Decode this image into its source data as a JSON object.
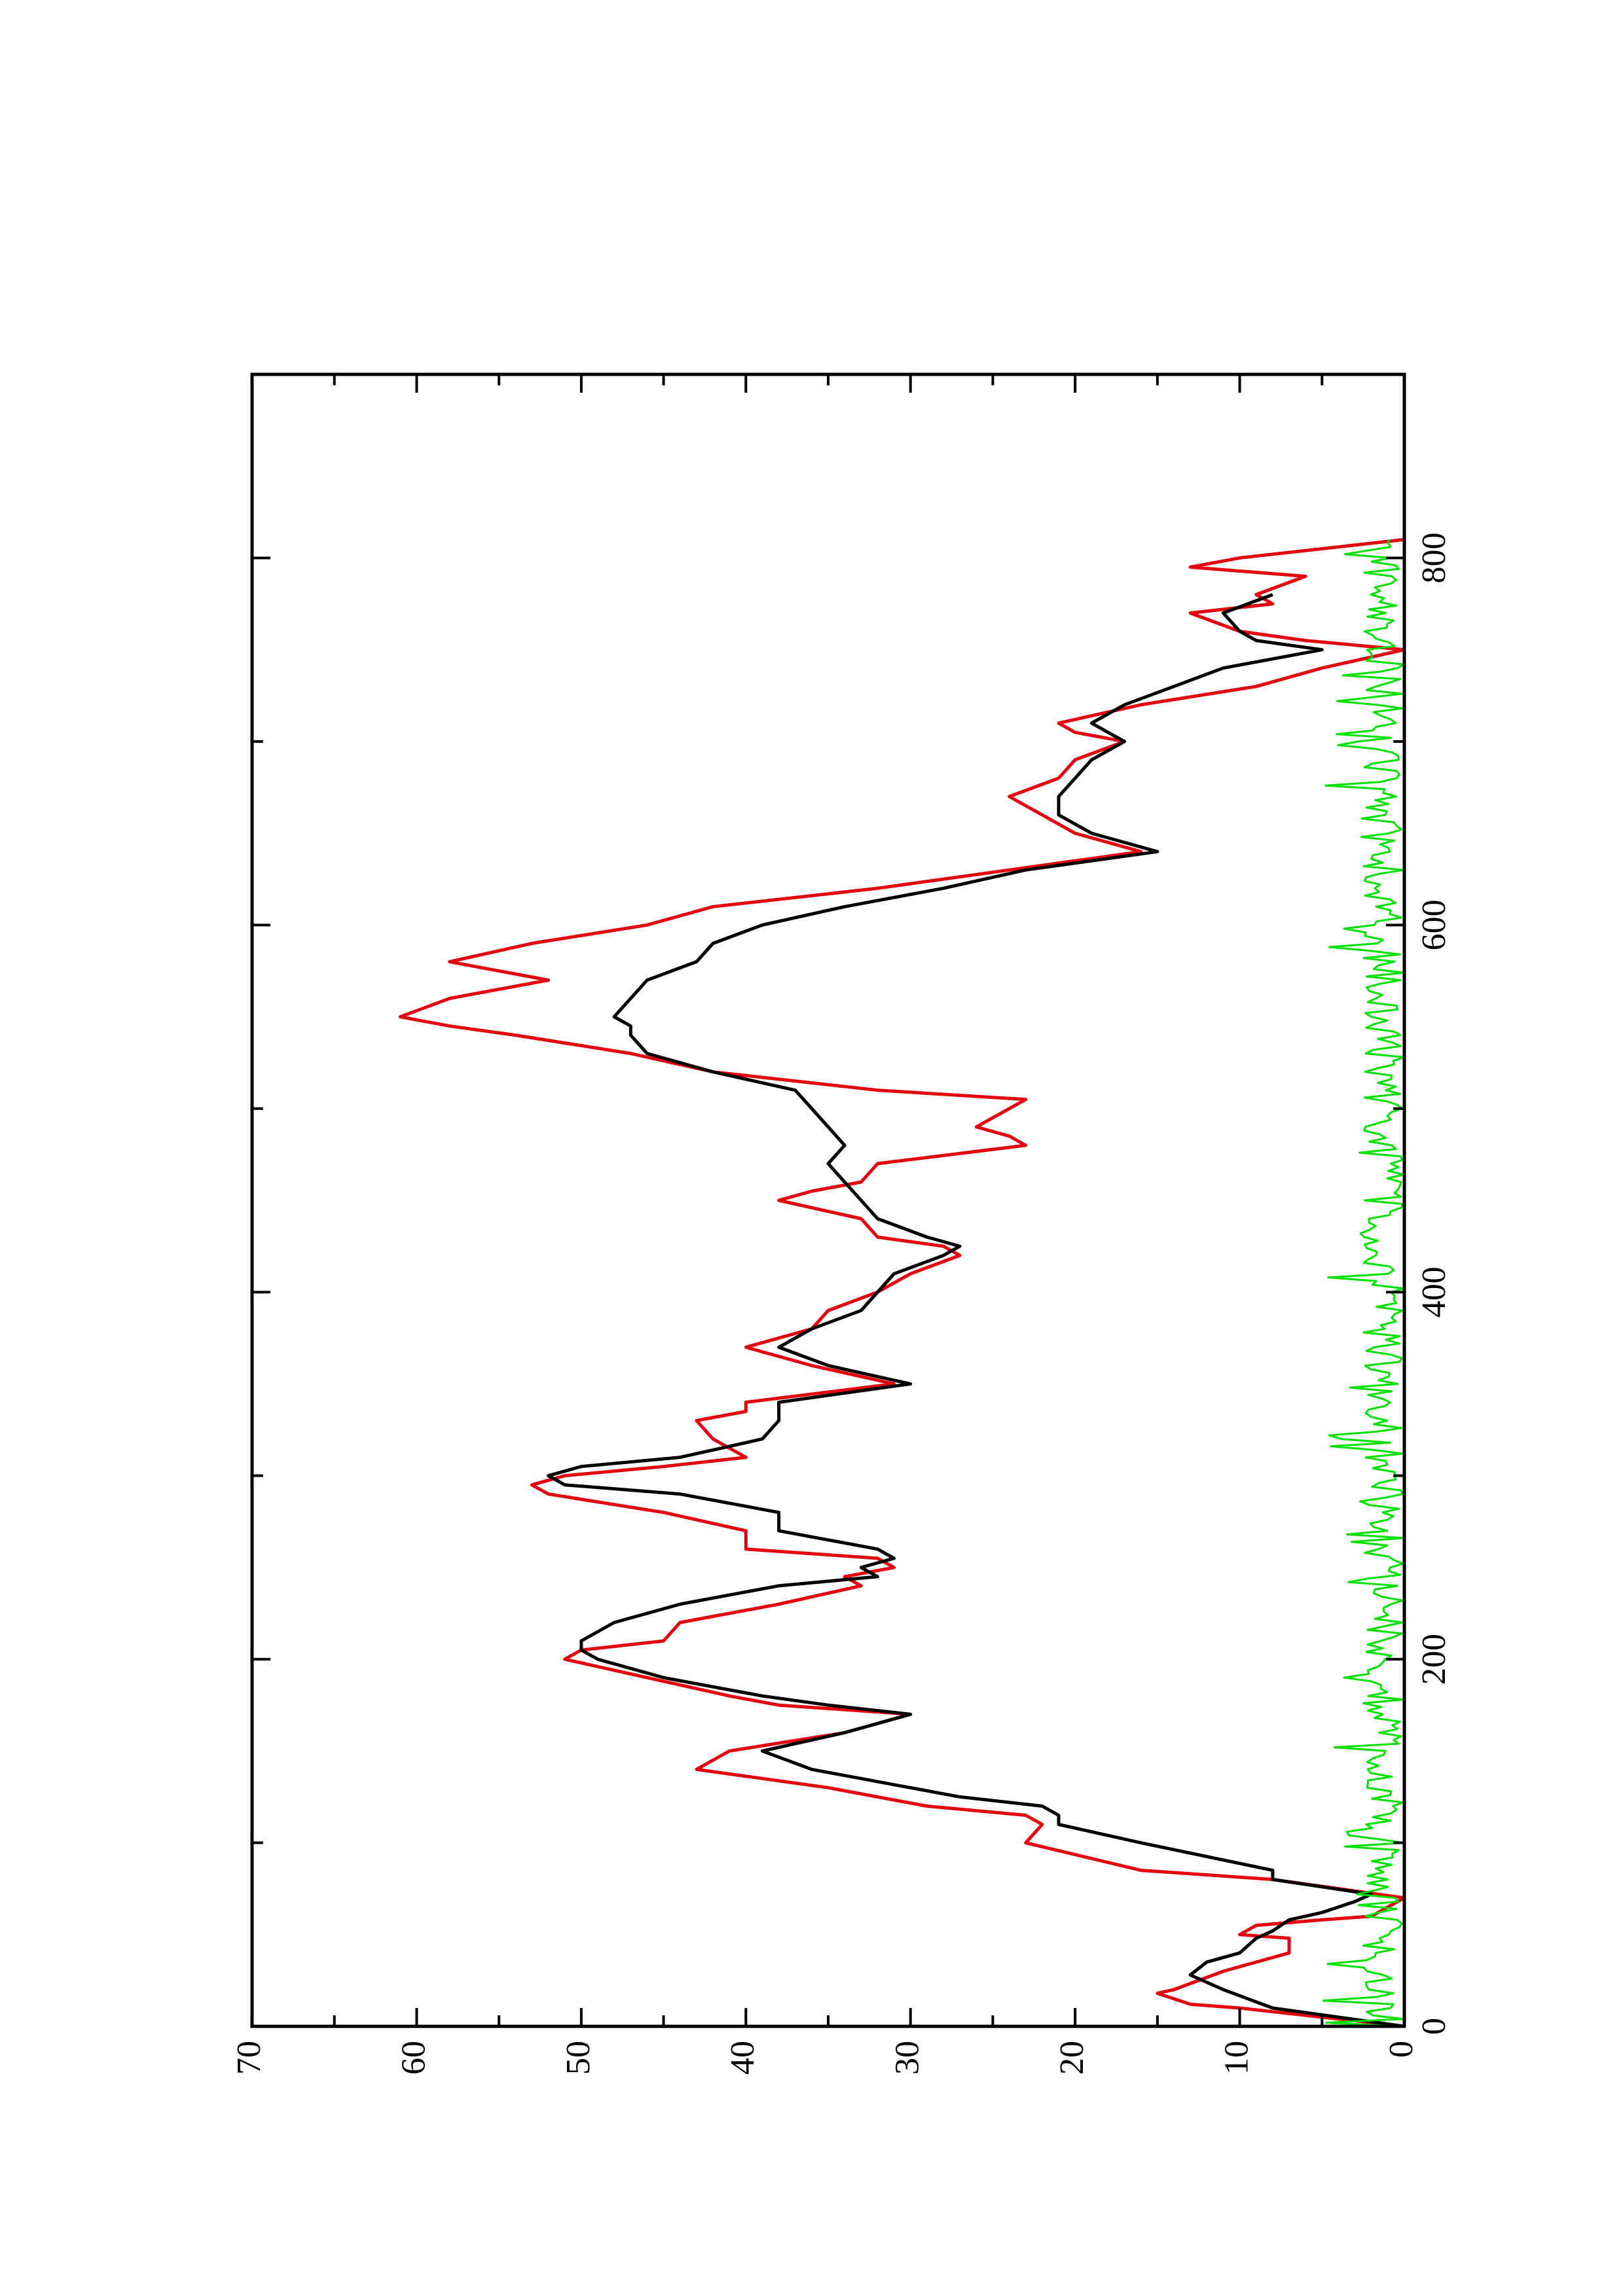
{
  "chart_data": {
    "type": "line",
    "orientation": "rotated-90-ccw",
    "title": "",
    "xlabel": "",
    "ylabel": "",
    "xlim": [
      0,
      900
    ],
    "ylim": [
      0,
      70
    ],
    "x_ticks": [
      "0",
      "200",
      "400",
      "600",
      "800"
    ],
    "y_ticks": [
      "0",
      "10",
      "20",
      "30",
      "40",
      "50",
      "60",
      "70"
    ],
    "grid": false,
    "legend": "none",
    "series": [
      {
        "color": "#e3000f",
        "x": [
          0,
          8,
          10,
          12,
          18,
          20,
          30,
          40,
          48,
          50,
          55,
          58,
          60,
          70,
          80,
          85,
          100,
          110,
          115,
          120,
          130,
          140,
          150,
          160,
          170,
          175,
          180,
          190,
          200,
          205,
          210,
          220,
          230,
          240,
          245,
          250,
          255,
          260,
          270,
          280,
          290,
          295,
          300,
          305,
          310,
          320,
          330,
          335,
          340,
          350,
          360,
          370,
          380,
          390,
          400,
          410,
          420,
          425,
          430,
          440,
          450,
          455,
          460,
          470,
          480,
          485,
          490,
          500,
          505,
          510,
          520,
          530,
          540,
          545,
          550,
          560,
          570,
          580,
          590,
          600,
          610,
          620,
          630,
          640,
          645,
          650,
          660,
          670,
          680,
          690,
          700,
          705,
          710,
          720,
          730,
          740,
          750,
          755,
          760,
          770,
          775,
          780,
          790,
          795,
          800,
          810
        ],
        "y": [
          0,
          8,
          10,
          13,
          15,
          14,
          11,
          7,
          7,
          10,
          9,
          5,
          2,
          0,
          8,
          16,
          23,
          22,
          23,
          29,
          35,
          43,
          41,
          34,
          30,
          38,
          41,
          46,
          51,
          50,
          45,
          44,
          38,
          33,
          34,
          31,
          32,
          40,
          40,
          45,
          52,
          53,
          51,
          45,
          40,
          42,
          43,
          40,
          40,
          31,
          36,
          40,
          36,
          35,
          32,
          30,
          27,
          28,
          32,
          33,
          38,
          36,
          33,
          32,
          23,
          24,
          26,
          24,
          23,
          32,
          42,
          47,
          54,
          58,
          61,
          58,
          52,
          58,
          53,
          46,
          42,
          32,
          24,
          16,
          18,
          20,
          22,
          24,
          21,
          20,
          17,
          20,
          21,
          16,
          9,
          5,
          0,
          6,
          10,
          13,
          8,
          9,
          6,
          13,
          10,
          0
        ]
      },
      {
        "color": "#000000",
        "x": [
          0,
          10,
          20,
          28,
          35,
          40,
          48,
          52,
          58,
          62,
          68,
          72,
          80,
          85,
          100,
          110,
          115,
          120,
          125,
          130,
          140,
          150,
          160,
          170,
          175,
          180,
          190,
          200,
          205,
          210,
          220,
          230,
          240,
          245,
          250,
          255,
          260,
          270,
          280,
          290,
          295,
          300,
          305,
          310,
          320,
          330,
          340,
          350,
          360,
          370,
          380,
          390,
          400,
          410,
          420,
          425,
          430,
          440,
          450,
          460,
          470,
          480,
          490,
          500,
          510,
          520,
          530,
          540,
          545,
          550,
          560,
          570,
          580,
          590,
          600,
          610,
          620,
          630,
          640,
          645,
          650,
          660,
          670,
          680,
          690,
          700,
          705,
          710,
          720,
          730,
          740,
          750,
          755,
          760,
          770,
          780
        ],
        "y": [
          0,
          8,
          11,
          13,
          12,
          10,
          9,
          8,
          7,
          5,
          3,
          2,
          8,
          8,
          16,
          21,
          21,
          22,
          27,
          30,
          36,
          39,
          34,
          30,
          35,
          39,
          45,
          49,
          50,
          50,
          48,
          44,
          38,
          32,
          33,
          31,
          32,
          38,
          38,
          44,
          51,
          52,
          50,
          44,
          39,
          38,
          38,
          30,
          35,
          38,
          36,
          33,
          32,
          31,
          28,
          27,
          29,
          32,
          33,
          34,
          35,
          34,
          35,
          36,
          37,
          42,
          46,
          47,
          47,
          48,
          47,
          46,
          43,
          42,
          39,
          34,
          28,
          23,
          15,
          17,
          19,
          21,
          21,
          20,
          19,
          17,
          18,
          19,
          17,
          14,
          11,
          5,
          9,
          10,
          11,
          8
        ]
      },
      {
        "color": "#00e000",
        "x": [
          0,
          810
        ],
        "y": [
          0,
          5
        ],
        "style": "noise",
        "baseline": 0,
        "amplitude_max": 5
      }
    ]
  }
}
